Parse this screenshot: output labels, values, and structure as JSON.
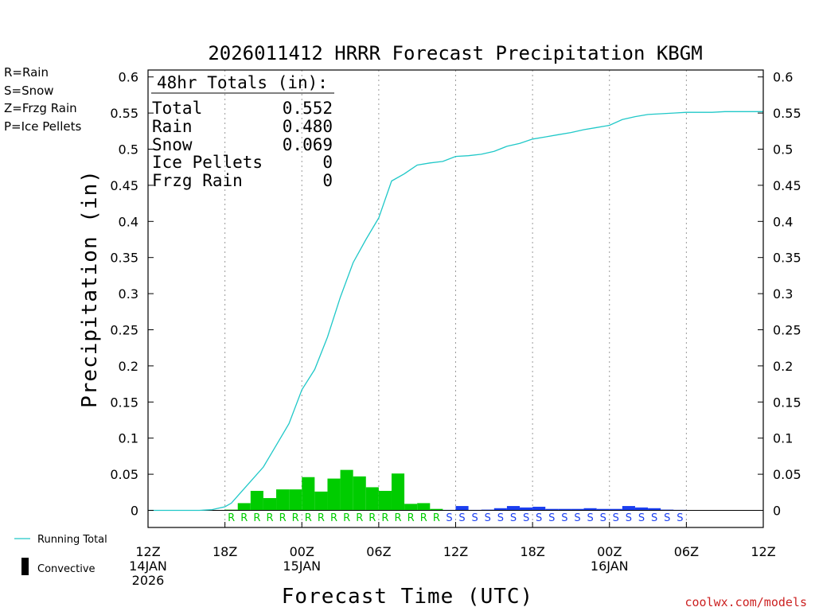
{
  "chart_data": {
    "type": "bar+line",
    "title": "2026011412 HRRR Forecast Precipitation KBGM",
    "xlabel": "Forecast Time (UTC)",
    "ylabel": "Precipitation (in)",
    "ylim": [
      -0.035,
      0.61
    ],
    "yticks": [
      0,
      0.05,
      0.1,
      0.15,
      0.2,
      0.25,
      0.3,
      0.35,
      0.4,
      0.45,
      0.5,
      0.55,
      0.6
    ],
    "ytick_labels": [
      "0",
      "0.05",
      "0.1",
      "0.15",
      "0.2",
      "0.25",
      "0.3",
      "0.35",
      "0.4",
      "0.45",
      "0.5",
      "0.55",
      "0.6"
    ],
    "xlim_hours": [
      0,
      48
    ],
    "xticks": [
      {
        "hour": 0,
        "lines": [
          "12Z",
          "14JAN",
          "2026"
        ]
      },
      {
        "hour": 6,
        "lines": [
          "18Z"
        ]
      },
      {
        "hour": 12,
        "lines": [
          "00Z",
          "15JAN"
        ]
      },
      {
        "hour": 18,
        "lines": [
          "06Z"
        ]
      },
      {
        "hour": 24,
        "lines": [
          "12Z"
        ]
      },
      {
        "hour": 30,
        "lines": [
          "18Z"
        ]
      },
      {
        "hour": 36,
        "lines": [
          "00Z",
          "16JAN"
        ]
      },
      {
        "hour": 42,
        "lines": [
          "06Z"
        ]
      },
      {
        "hour": 48,
        "lines": [
          "12Z"
        ]
      }
    ],
    "hourly_bars": {
      "hours": [
        6,
        7,
        8,
        9,
        10,
        11,
        12,
        13,
        14,
        15,
        16,
        17,
        18,
        19,
        20,
        21,
        22,
        23,
        24,
        25,
        26,
        27,
        28,
        29,
        30,
        31,
        32,
        33,
        34,
        35,
        36,
        37,
        38,
        39,
        40,
        41
      ],
      "values": [
        0.001,
        0.01,
        0.027,
        0.017,
        0.029,
        0.029,
        0.046,
        0.026,
        0.044,
        0.056,
        0.047,
        0.032,
        0.027,
        0.051,
        0.009,
        0.01,
        0.002,
        0.0005,
        0.006,
        0.0005,
        0.001,
        0.003,
        0.006,
        0.004,
        0.005,
        0.002,
        0.002,
        0.002,
        0.003,
        0.002,
        0.002,
        0.006,
        0.004,
        0.003,
        0.001,
        0.0005
      ],
      "types": [
        "R",
        "R",
        "R",
        "R",
        "R",
        "R",
        "R",
        "R",
        "R",
        "R",
        "R",
        "R",
        "R",
        "R",
        "R",
        "R",
        "R",
        "S",
        "S",
        "S",
        "S",
        "S",
        "S",
        "S",
        "S",
        "S",
        "S",
        "S",
        "S",
        "S",
        "S",
        "S",
        "S",
        "S",
        "S",
        "S"
      ]
    },
    "running_total": {
      "hours": [
        0,
        1,
        2,
        3,
        4,
        5,
        5.5,
        6,
        6.5,
        7,
        8,
        9,
        10,
        11,
        12,
        13,
        14,
        15,
        16,
        17,
        18,
        19,
        20,
        21,
        22,
        23,
        24,
        25,
        26,
        27,
        28,
        29,
        30,
        31,
        32,
        33,
        34,
        35,
        36,
        37,
        38,
        39,
        40,
        41,
        42,
        43,
        44,
        45,
        46,
        47,
        48
      ],
      "values": [
        0,
        0,
        0,
        0,
        0,
        0.001,
        0.003,
        0.005,
        0.01,
        0.02,
        0.04,
        0.06,
        0.09,
        0.12,
        0.167,
        0.195,
        0.24,
        0.295,
        0.343,
        0.375,
        0.405,
        0.456,
        0.466,
        0.478,
        0.481,
        0.483,
        0.49,
        0.491,
        0.493,
        0.497,
        0.504,
        0.508,
        0.514,
        0.517,
        0.52,
        0.523,
        0.527,
        0.53,
        0.533,
        0.541,
        0.545,
        0.548,
        0.549,
        0.55,
        0.551,
        0.551,
        0.551,
        0.552,
        0.552,
        0.552,
        0.552
      ]
    },
    "colors": {
      "rain": "#00cc00",
      "snow": "#1b3ff0",
      "frzg_rain": "#f07e2c",
      "ice_pellets": "#e0229a",
      "running_total": "#20c8c8",
      "convective": "#000000"
    }
  },
  "ptype_legend": [
    {
      "label": "R=Rain",
      "color": "#00cc00"
    },
    {
      "label": "S=Snow",
      "color": "#1b3ff0"
    },
    {
      "label": "Z=Frzg Rain",
      "color": "#f07e2c"
    },
    {
      "label": "P=Ice Pellets",
      "color": "#e0229a"
    }
  ],
  "totals_box": {
    "header": "48hr Totals (in):",
    "rows": [
      {
        "name": "Total",
        "value": "0.552"
      },
      {
        "name": "Rain",
        "value": "0.480"
      },
      {
        "name": "Snow",
        "value": "0.069"
      },
      {
        "name": "Ice Pellets",
        "value": "0"
      },
      {
        "name": "Frzg Rain",
        "value": "0"
      }
    ]
  },
  "line_legend": {
    "running_total": "Running Total",
    "convective": "Convective"
  },
  "credit": "coolwx.com/models",
  "credit_color": "#cc2222"
}
